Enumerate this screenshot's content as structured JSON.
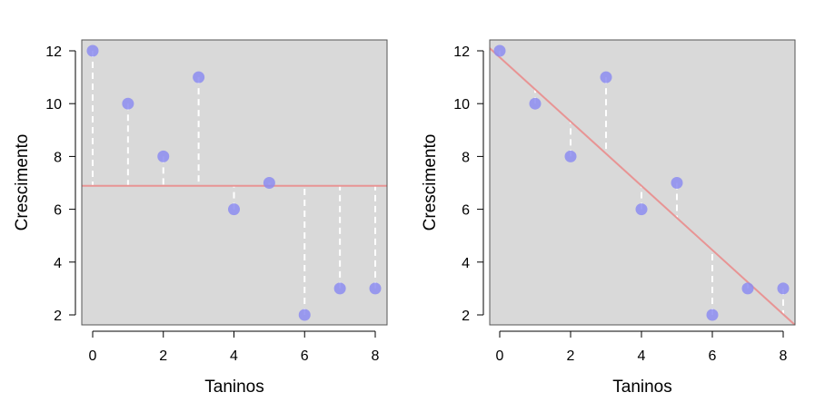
{
  "chart_data": [
    {
      "type": "scatter",
      "xlabel": "Taninos",
      "ylabel": "Crescimento",
      "x": [
        0,
        1,
        2,
        3,
        4,
        5,
        6,
        7,
        8
      ],
      "y": [
        12,
        10,
        8,
        11,
        6,
        7,
        2,
        3,
        3
      ],
      "xticks": [
        0,
        2,
        4,
        6,
        8
      ],
      "yticks": [
        2,
        4,
        6,
        8,
        10,
        12
      ],
      "fit": {
        "kind": "mean",
        "intercept": 6.888889,
        "slope": 0
      },
      "residuals_shown": true,
      "colors": {
        "point": "#8c8cf0",
        "line": "#e89494",
        "panel": "#d9d9d9",
        "residual": "#ffffff"
      }
    },
    {
      "type": "scatter",
      "xlabel": "Taninos",
      "ylabel": "Crescimento",
      "x": [
        0,
        1,
        2,
        3,
        4,
        5,
        6,
        7,
        8
      ],
      "y": [
        12,
        10,
        8,
        11,
        6,
        7,
        2,
        3,
        3
      ],
      "xticks": [
        0,
        2,
        4,
        6,
        8
      ],
      "yticks": [
        2,
        4,
        6,
        8,
        10,
        12
      ],
      "fit": {
        "kind": "linear",
        "intercept": 11.755556,
        "slope": -1.216667
      },
      "residuals_shown": true,
      "colors": {
        "point": "#8c8cf0",
        "line": "#e89494",
        "panel": "#d9d9d9",
        "residual": "#ffffff"
      }
    }
  ]
}
